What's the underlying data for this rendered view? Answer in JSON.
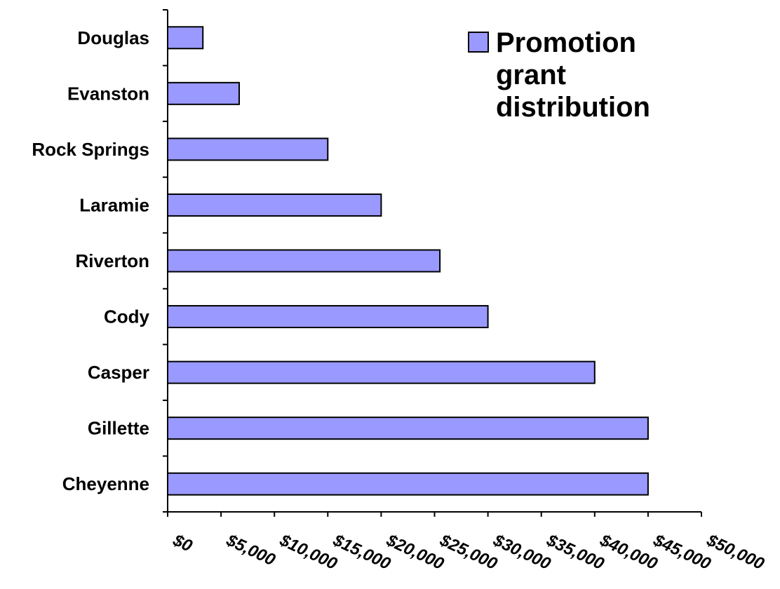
{
  "chart_data": {
    "type": "bar",
    "orientation": "horizontal",
    "categories": [
      "Douglas",
      "Evanston",
      "Rock Springs",
      "Laramie",
      "Riverton",
      "Cody",
      "Casper",
      "Gillette",
      "Cheyenne"
    ],
    "series": [
      {
        "name": "Promotion grant distribution",
        "values": [
          3300,
          6700,
          15000,
          20000,
          25500,
          30000,
          40000,
          45000,
          45000
        ]
      }
    ],
    "x_tick_labels": [
      "$0",
      "$5,000",
      "$10,000",
      "$15,000",
      "$20,000",
      "$25,000",
      "$30,000",
      "$35,000",
      "$40,000",
      "$45,000",
      "$50,000"
    ],
    "xlim": [
      0,
      50000
    ],
    "xtick_step": 5000,
    "grid": false,
    "legend": {
      "position": "top-right",
      "lines": [
        "Promotion",
        "grant",
        "distribution"
      ]
    },
    "colors": {
      "bar_fill": "#9999ff",
      "bar_stroke": "#000000",
      "axis": "#000000",
      "text": "#000000"
    }
  }
}
